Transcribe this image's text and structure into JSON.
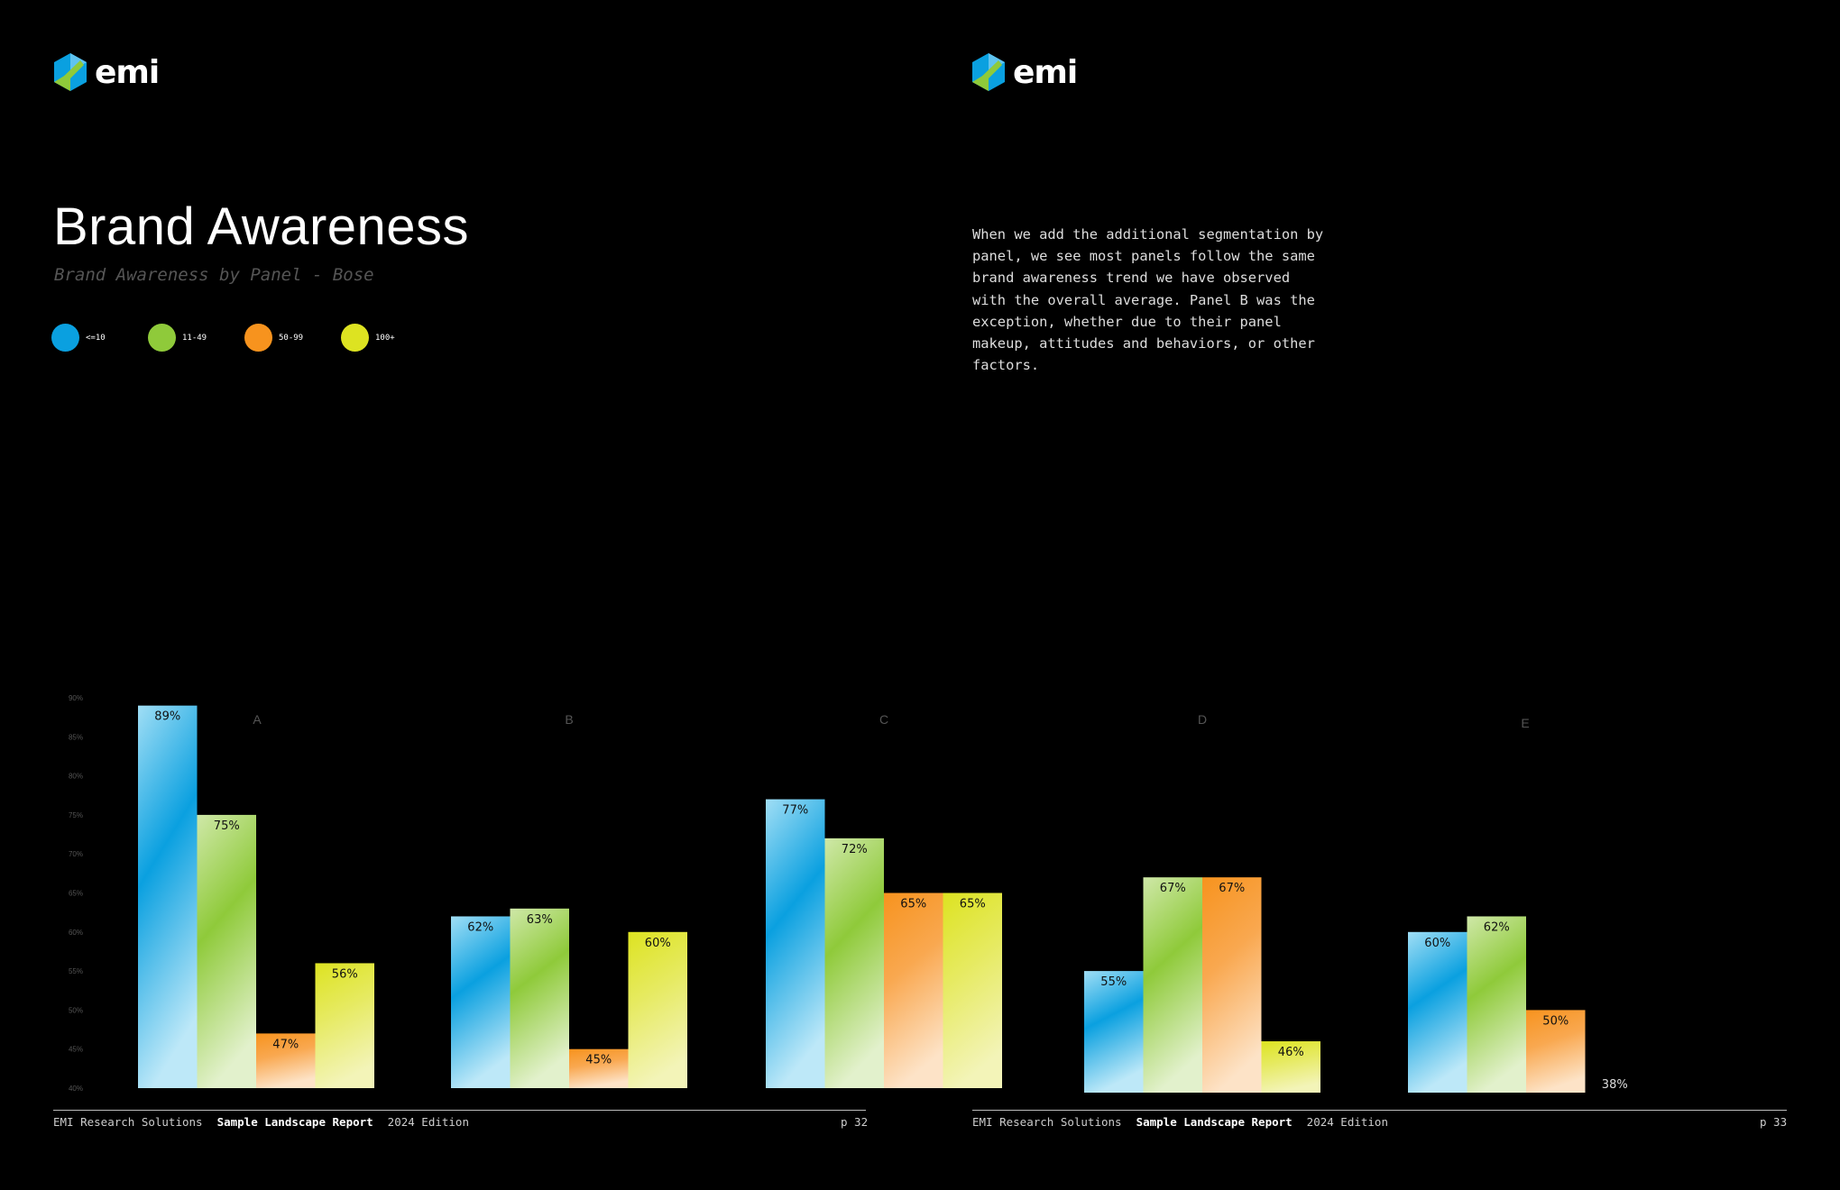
{
  "brand": {
    "name": "emi"
  },
  "left_page": {
    "title": "Brand Awareness",
    "subtitle": "Brand Awareness by Panel - Bose",
    "footer": {
      "company": "EMI Research Solutions",
      "report": "Sample Landscape Report",
      "edition": "2024 Edition",
      "page": "p 32"
    }
  },
  "right_page": {
    "body": "When we add the additional segmentation by\npanel, we see most panels follow the same\nbrand awareness trend we have observed\nwith the overall average. Panel B was the\nexception, whether due to their panel\nmakeup, attitudes and behaviors, or other\nfactors.",
    "footer": {
      "company": "EMI Research Solutions",
      "report": "Sample Landscape Report",
      "edition": "2024 Edition",
      "page": "p 33"
    }
  },
  "legend": [
    {
      "label": "<=10",
      "color": "#0aa0e0"
    },
    {
      "label": "11-49",
      "color": "#8fca3a"
    },
    {
      "label": "50-99",
      "color": "#f7931e"
    },
    {
      "label": "100+",
      "color": "#dde321"
    }
  ],
  "chart_data": {
    "type": "bar",
    "title": "Brand Awareness",
    "subtitle": "Brand Awareness by Panel - Bose",
    "categories": [
      "A",
      "B",
      "C",
      "D",
      "E"
    ],
    "series": [
      {
        "name": "<=10",
        "values": [
          89,
          62,
          77,
          55,
          60
        ]
      },
      {
        "name": "11-49",
        "values": [
          75,
          63,
          72,
          67,
          62
        ]
      },
      {
        "name": "50-99",
        "values": [
          47,
          45,
          65,
          67,
          50
        ]
      },
      {
        "name": "100+",
        "values": [
          56,
          60,
          65,
          46,
          38
        ]
      }
    ],
    "value_labels": [
      [
        "89%",
        "62%",
        "77%",
        "55%",
        "60%"
      ],
      [
        "75%",
        "63%",
        "72%",
        "67%",
        "62%"
      ],
      [
        "47%",
        "45%",
        "65%",
        "67%",
        "50%"
      ],
      [
        "56%",
        "60%",
        "65%",
        "46%",
        "38%"
      ]
    ],
    "y_ticks": [
      "40%",
      "45%",
      "50%",
      "55%",
      "60%",
      "65%",
      "70%",
      "75%",
      "80%",
      "85%",
      "90%"
    ],
    "ylim": [
      40,
      90
    ],
    "grid": false,
    "legend_position": "top-left",
    "colors": [
      "#0aa0e0",
      "#8fca3a",
      "#f7931e",
      "#dde321"
    ]
  }
}
